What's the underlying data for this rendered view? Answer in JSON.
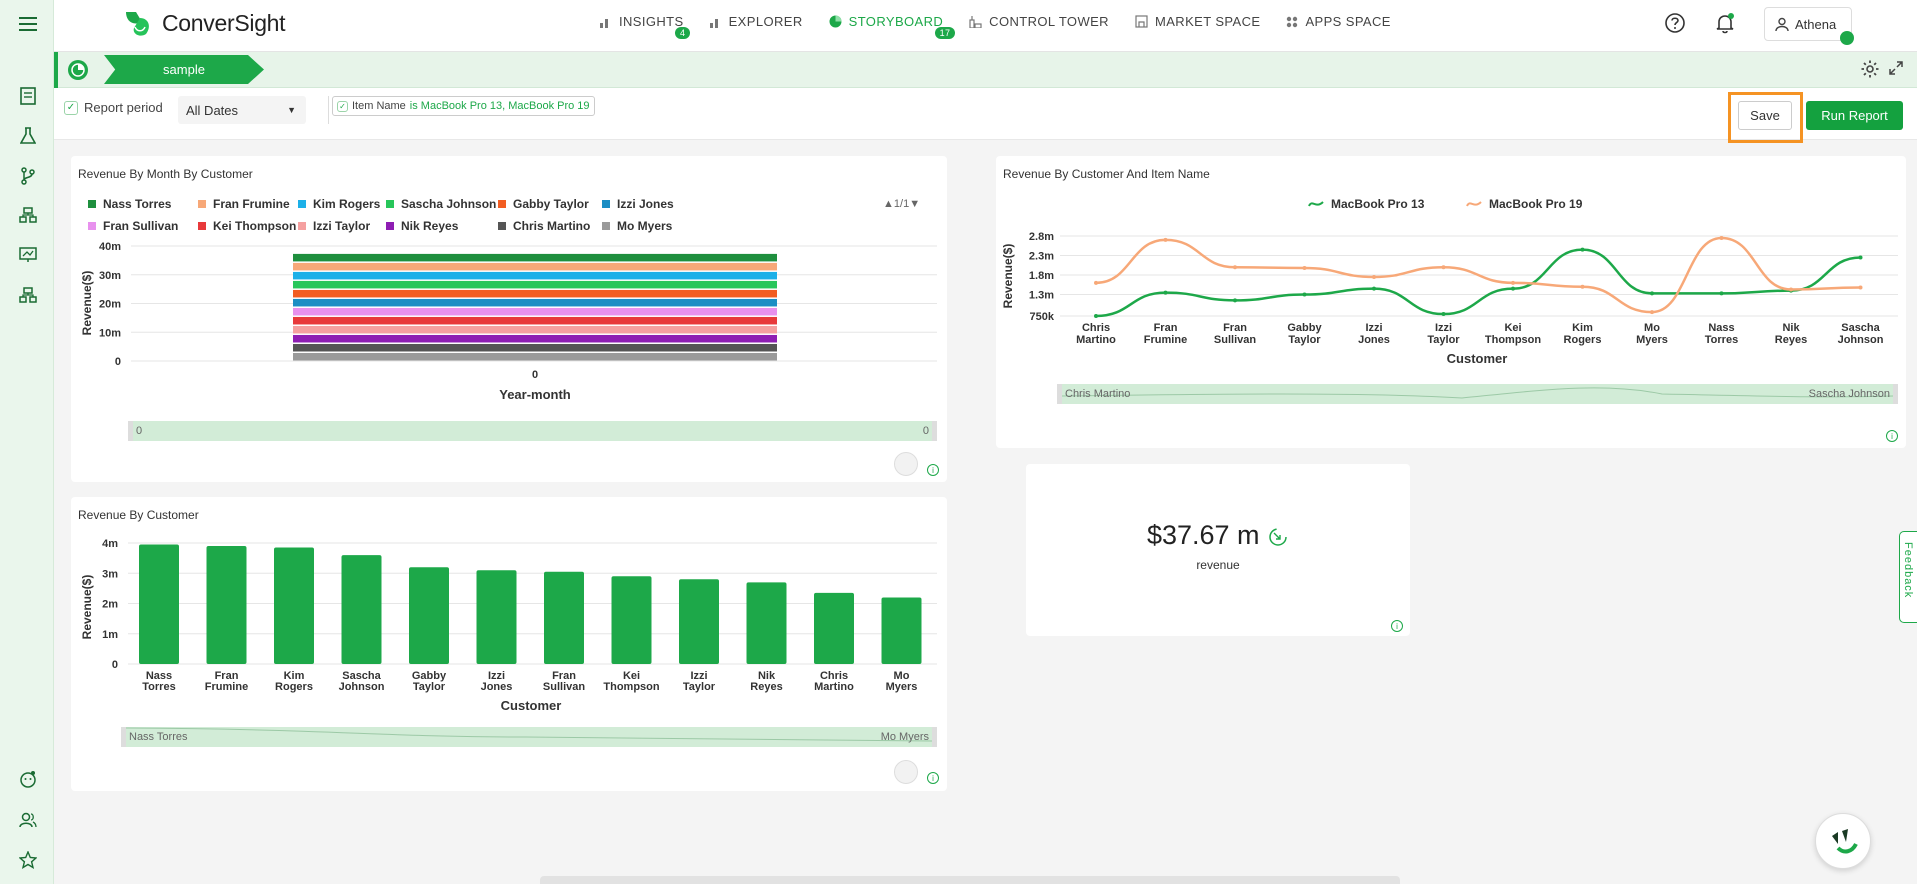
{
  "app": {
    "logo_text": "ConverSight",
    "brand_color": "#1da849"
  },
  "nav": {
    "items": [
      {
        "label": "INSIGHTS",
        "icon": "bar-chart-icon",
        "badge": "4"
      },
      {
        "label": "EXPLORER",
        "icon": "bar-chart-icon",
        "badge": ""
      },
      {
        "label": "STORYBOARD",
        "icon": "pie-icon",
        "badge": "17",
        "active": true
      },
      {
        "label": "CONTROL TOWER",
        "icon": "tower-icon",
        "badge": ""
      },
      {
        "label": "MARKET SPACE",
        "icon": "store-icon",
        "badge": ""
      },
      {
        "label": "APPS SPACE",
        "icon": "grid-icon",
        "badge": ""
      }
    ],
    "user_name": "Athena"
  },
  "storyboard": {
    "tab_label": "sample"
  },
  "filters": {
    "report_period_label": "Report period",
    "date_value": "All Dates",
    "item_filter_label": "Item Name",
    "item_filter_value": "is MacBook Pro 13, MacBook Pro 19",
    "save_label": "Save",
    "run_label": "Run Report"
  },
  "cards": {
    "monthly": {
      "title": "Revenue By Month By Customer",
      "pager": "1/1",
      "zoom_start": "0",
      "zoom_end": "0"
    },
    "by_customer_item": {
      "title": "Revenue By Customer And Item Name",
      "zoom_start": "Chris Martino",
      "zoom_end": "Sascha Johnson"
    },
    "by_customer": {
      "title": "Revenue By Customer",
      "zoom_start": "Nass Torres",
      "zoom_end": "Mo Myers"
    },
    "kpi": {
      "value": "$37.67 m",
      "label": "revenue"
    }
  },
  "feedback_label": "Feedback",
  "chart_data": [
    {
      "type": "bar",
      "title": "Revenue By Month By Customer",
      "xlabel": "Year-month",
      "ylabel": "Revenue($)",
      "categories": [
        "0"
      ],
      "yticks": [
        "0",
        "10m",
        "20m",
        "30m",
        "40m"
      ],
      "ylim": [
        0,
        40000000
      ],
      "stacked": true,
      "legend_position": "top",
      "series": [
        {
          "name": "Nass Torres",
          "color": "#1e8f3e",
          "values": [
            3950000
          ]
        },
        {
          "name": "Fran Frumine",
          "color": "#f7a878",
          "values": [
            3900000
          ]
        },
        {
          "name": "Kim Rogers",
          "color": "#1cb0e8",
          "values": [
            3850000
          ]
        },
        {
          "name": "Sascha Johnson",
          "color": "#27c65a",
          "values": [
            3600000
          ]
        },
        {
          "name": "Gabby Taylor",
          "color": "#f25d22",
          "values": [
            3200000
          ]
        },
        {
          "name": "Izzi Jones",
          "color": "#1b8ec4",
          "values": [
            3100000
          ]
        },
        {
          "name": "Fran Sullivan",
          "color": "#e891ee",
          "values": [
            3050000
          ]
        },
        {
          "name": "Kei Thompson",
          "color": "#e8393b",
          "values": [
            2900000
          ]
        },
        {
          "name": "Izzi Taylor",
          "color": "#f5a0a0",
          "values": [
            2800000
          ]
        },
        {
          "name": "Nik Reyes",
          "color": "#8e1eb3",
          "values": [
            2700000
          ]
        },
        {
          "name": "Chris Martino",
          "color": "#555555",
          "values": [
            2350000
          ]
        },
        {
          "name": "Mo Myers",
          "color": "#9a9a9a",
          "values": [
            2200000
          ]
        }
      ]
    },
    {
      "type": "line",
      "title": "Revenue By Customer And Item Name",
      "xlabel": "Customer",
      "ylabel": "Revenue($)",
      "categories": [
        "Chris Martino",
        "Fran Frumine",
        "Fran Sullivan",
        "Gabby Taylor",
        "Izzi Jones",
        "Izzi Taylor",
        "Kei Thompson",
        "Kim Rogers",
        "Mo Myers",
        "Nass Torres",
        "Nik Reyes",
        "Sascha Johnson"
      ],
      "yticks": [
        "750k",
        "1.3m",
        "1.8m",
        "2.3m",
        "2.8m"
      ],
      "ytick_values": [
        750000,
        1300000,
        1800000,
        2300000,
        2800000
      ],
      "ylim": [
        750000,
        2800000
      ],
      "legend_position": "top",
      "series": [
        {
          "name": "MacBook Pro 13",
          "color": "#1da849",
          "values": [
            750000,
            1350000,
            1150000,
            1300000,
            1450000,
            800000,
            1450000,
            2450000,
            1330000,
            1330000,
            1400000,
            2250000
          ]
        },
        {
          "name": "MacBook Pro 19",
          "color": "#f7a878",
          "values": [
            1600000,
            2700000,
            2000000,
            1980000,
            1750000,
            2000000,
            1600000,
            1500000,
            850000,
            2750000,
            1430000,
            1480000
          ]
        }
      ]
    },
    {
      "type": "bar",
      "title": "Revenue By Customer",
      "xlabel": "Customer",
      "ylabel": "Revenue($)",
      "categories": [
        "Nass Torres",
        "Fran Frumine",
        "Kim Rogers",
        "Sascha Johnson",
        "Gabby Taylor",
        "Izzi Jones",
        "Fran Sullivan",
        "Kei Thompson",
        "Izzi Taylor",
        "Nik Reyes",
        "Chris Martino",
        "Mo Myers"
      ],
      "yticks": [
        "0",
        "1m",
        "2m",
        "3m",
        "4m"
      ],
      "ylim": [
        0,
        4000000
      ],
      "color": "#1da849",
      "values": [
        3950000,
        3900000,
        3850000,
        3600000,
        3200000,
        3100000,
        3050000,
        2900000,
        2800000,
        2700000,
        2350000,
        2200000
      ]
    }
  ]
}
